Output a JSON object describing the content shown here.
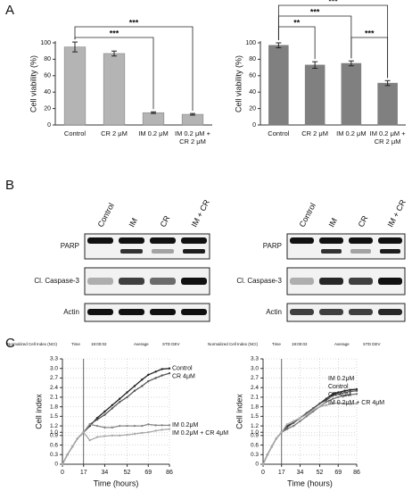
{
  "panel_labels": [
    "A",
    "B",
    "C"
  ],
  "chart_data": [
    {
      "type": "bar",
      "ylabel": "Cell viability (%)",
      "categories": [
        "Control",
        "CR 2 μM",
        "IM 0.2 μM",
        "IM 0.2 μM + CR 2 μM"
      ],
      "values": [
        95,
        87,
        15,
        13
      ],
      "errors": [
        6,
        3,
        1,
        1
      ],
      "color": "#b4b4b4",
      "ylim": [
        0,
        100
      ],
      "yticks": [
        0,
        20,
        40,
        60,
        80,
        100
      ],
      "brackets": [
        {
          "between": [
            "Control",
            "IM 0.2 μM"
          ],
          "label": "***"
        },
        {
          "between": [
            "Control",
            "IM 0.2 μM + CR 2 μM"
          ],
          "label": "***"
        }
      ]
    },
    {
      "type": "bar",
      "ylabel": "Cell viability (%)",
      "categories": [
        "Control",
        "CR 2 μM",
        "IM 0.2 μM",
        "IM 0.2 μM + CR 2 μM"
      ],
      "values": [
        97,
        73,
        75,
        51
      ],
      "errors": [
        3,
        4,
        3,
        3
      ],
      "color": "#808080",
      "ylim": [
        0,
        100
      ],
      "yticks": [
        0,
        20,
        40,
        60,
        80,
        100
      ],
      "brackets": [
        {
          "between": [
            "IM 0.2 μM",
            "IM 0.2 μM + CR 2 μM"
          ],
          "label": "***"
        },
        {
          "between": [
            "Control",
            "CR 2 μM"
          ],
          "label": "**"
        },
        {
          "between": [
            "Control",
            "IM 0.2 μM"
          ],
          "label": "***"
        },
        {
          "between": [
            "Control",
            "IM 0.2 μM + CR 2 μM"
          ],
          "label": "***"
        }
      ]
    },
    {
      "type": "line",
      "toolbar": [
        "Normalized Cell Index (NCI)",
        "Time",
        "19:00:02",
        "Average",
        "STD DEV"
      ],
      "xlabel": "Time (hours)",
      "ylabel": "Cell index",
      "grid": true,
      "vline": 17,
      "x": [
        0,
        4,
        8,
        12,
        17,
        22,
        28,
        34,
        40,
        46,
        52,
        58,
        64,
        69,
        75,
        80,
        86
      ],
      "xlim": [
        0,
        86
      ],
      "xticks": [
        0,
        17,
        34,
        52,
        69,
        86
      ],
      "ylim": [
        0,
        3.3
      ],
      "yticks": [
        0,
        0.3,
        0.6,
        0.9,
        {
          "value": 1,
          "label": "1.0"
        },
        1.2,
        1.5,
        1.8,
        2.1,
        2.4,
        2.7,
        {
          "value": 3,
          "label": "3.0"
        },
        3.3
      ],
      "series": [
        {
          "name": "Control",
          "color": "#222222",
          "values": [
            0,
            0.3,
            0.55,
            0.8,
            1.0,
            1.2,
            1.45,
            1.65,
            1.85,
            2.05,
            2.25,
            2.45,
            2.65,
            2.8,
            2.9,
            2.98,
            3.0
          ]
        },
        {
          "name": "CR 4μM",
          "color": "#555555",
          "values": [
            0,
            0.3,
            0.55,
            0.8,
            1.0,
            1.25,
            1.4,
            1.55,
            1.75,
            1.95,
            2.1,
            2.3,
            2.45,
            2.6,
            2.7,
            2.78,
            2.85
          ]
        },
        {
          "name": "IM 0.2μM",
          "color": "#8a8a8a",
          "values": [
            0,
            0.3,
            0.55,
            0.8,
            1.0,
            1.25,
            1.2,
            1.15,
            1.15,
            1.2,
            1.2,
            1.2,
            1.2,
            1.25,
            1.22,
            1.22,
            1.22
          ]
        },
        {
          "name": "IM 0.2μM + CR 4μM",
          "color": "#aaaaaa",
          "values": [
            0,
            0.3,
            0.55,
            0.8,
            1.0,
            0.75,
            0.85,
            0.88,
            0.9,
            0.9,
            0.92,
            0.95,
            0.98,
            1.0,
            1.05,
            1.08,
            1.1
          ]
        }
      ]
    },
    {
      "type": "line",
      "toolbar": [
        "Normalized Cell Index (NCI)",
        "Time",
        "19:00:02",
        "Average",
        "STD DEV"
      ],
      "xlabel": "Time (hours)",
      "ylabel": "Cell index",
      "grid": true,
      "vline": 17,
      "x": [
        0,
        4,
        8,
        12,
        17,
        22,
        28,
        34,
        40,
        46,
        52,
        58,
        64,
        69,
        75,
        80,
        86
      ],
      "xlim": [
        0,
        86
      ],
      "xticks": [
        0,
        17,
        34,
        52,
        69,
        86
      ],
      "ylim": [
        0,
        3.3
      ],
      "yticks": [
        0,
        0.3,
        0.6,
        0.9,
        {
          "value": 1,
          "label": "1.0"
        },
        1.2,
        1.5,
        1.8,
        2.1,
        2.4,
        2.7,
        {
          "value": 3,
          "label": "3.0"
        },
        3.3
      ],
      "series": [
        {
          "name": "IM 0.2μM",
          "color": "#222222",
          "values": [
            0,
            0.3,
            0.55,
            0.8,
            1.0,
            1.2,
            1.3,
            1.45,
            1.6,
            1.75,
            1.9,
            2.05,
            2.2,
            2.25,
            2.3,
            2.33,
            2.35
          ]
        },
        {
          "name": "Control",
          "color": "#555555",
          "values": [
            0,
            0.3,
            0.55,
            0.8,
            1.0,
            1.15,
            1.3,
            1.45,
            1.6,
            1.75,
            1.9,
            2.0,
            2.15,
            2.2,
            2.25,
            2.28,
            2.3
          ]
        },
        {
          "name": "CR 4μM",
          "color": "#777777",
          "values": [
            0,
            0.3,
            0.55,
            0.8,
            1.0,
            1.1,
            1.2,
            1.35,
            1.5,
            1.65,
            1.8,
            1.95,
            2.05,
            2.1,
            2.15,
            2.18,
            2.2
          ]
        },
        {
          "name": "IM 0.2μM + CR 4μM",
          "color": "#aaaaaa",
          "values": [
            0,
            0.3,
            0.55,
            0.8,
            1.0,
            1.25,
            1.35,
            1.45,
            1.55,
            1.7,
            1.8,
            1.85,
            1.9,
            1.92,
            1.9,
            1.88,
            1.9
          ]
        }
      ]
    }
  ],
  "blots": [
    {
      "lanes": [
        "Control",
        "IM",
        "CR",
        "IM + CR"
      ],
      "rows": [
        "PARP",
        "Cl. Caspase-3",
        "Actin"
      ]
    },
    {
      "lanes": [
        "Control",
        "IM",
        "CR",
        "IM + CR"
      ],
      "rows": [
        "PARP",
        "Cl. Caspase-3",
        "Actin"
      ]
    }
  ]
}
